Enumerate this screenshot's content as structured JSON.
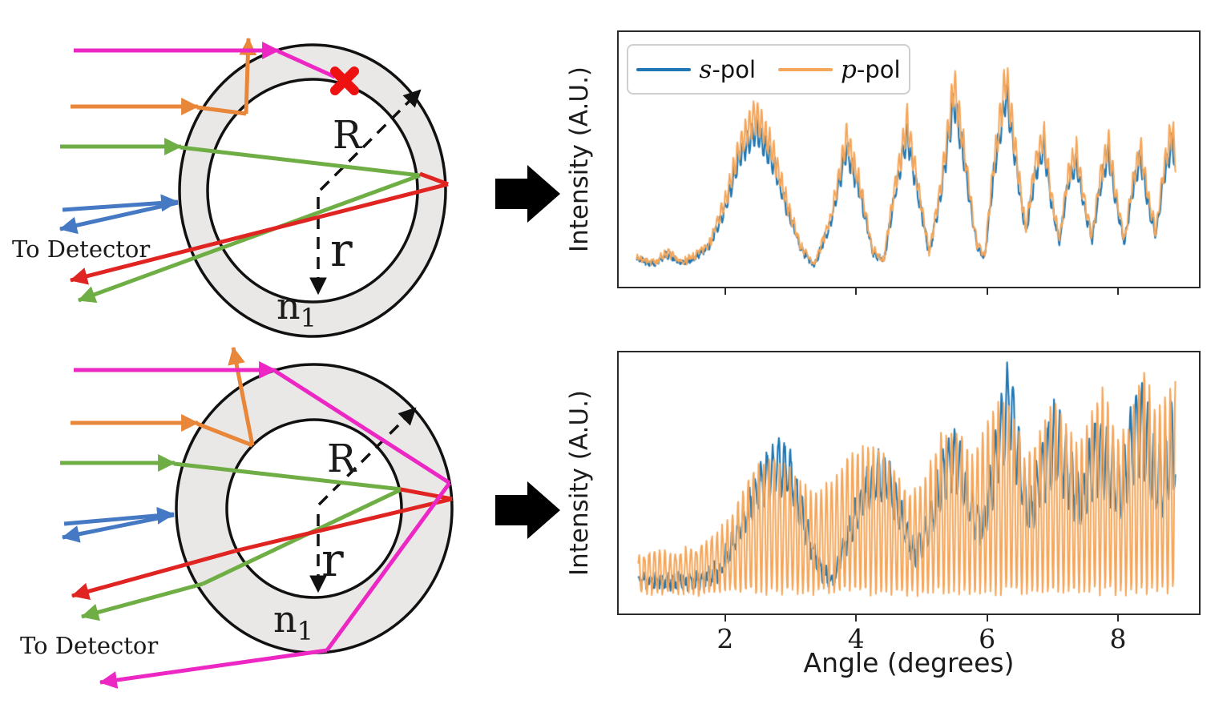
{
  "figure": {
    "background": "#ffffff",
    "flow_arrow_color": "#000000"
  },
  "diagram_colors": {
    "shell_fill": "#e9e8e7",
    "outline": "#111111",
    "magenta_ray": "#ec27c4",
    "orange_ray": "#e8863a",
    "green_ray": "#6fae44",
    "blue_ray": "#4579c4",
    "red_ray": "#e02421",
    "blocked_marker": "#ee1111",
    "dimension_color": "#111111"
  },
  "diagrams": {
    "top": {
      "to_detector": "To Detector",
      "outer_radius_label": "R",
      "inner_radius_label": "r",
      "refractive_index_base": "n",
      "refractive_index_sub": "1"
    },
    "bottom": {
      "to_detector": "To Detector",
      "outer_radius_label": "R",
      "inner_radius_label": "r",
      "refractive_index_base": "n",
      "refractive_index_sub": "1"
    }
  },
  "chart_data": [
    {
      "id": "upper-intensity-plot",
      "type": "line",
      "title": "",
      "xlabel": "",
      "ylabel": "Intensity (A.U.)",
      "xlim": [
        0.35,
        9.26
      ],
      "ylim": [
        -0.05,
        1.05
      ],
      "xticks": [
        2,
        4,
        6,
        8
      ],
      "show_xtick_labels": false,
      "grid": false,
      "legend": {
        "visible": true,
        "position": "upper-left",
        "entries": [
          {
            "symbol": "s",
            "suffix": "-pol",
            "color": "#1f77b4"
          },
          {
            "symbol": "p",
            "suffix": "-pol",
            "color": "#f4a65a"
          }
        ]
      },
      "x_start": 0.62,
      "x_end": 8.9,
      "dx": 0.008,
      "series": [
        {
          "name": "s-pol",
          "color": "#1f77b4",
          "mode": "ripple",
          "linewidth": 2.1,
          "seed": 42,
          "noise": 0.013,
          "ripple_amp": 0.09,
          "ripple_period": 0.07,
          "phase": 0.0,
          "envelope": [
            [
              0.62,
              0.07
            ],
            [
              0.9,
              0.05
            ],
            [
              1.1,
              0.09
            ],
            [
              1.3,
              0.05
            ],
            [
              1.5,
              0.07
            ],
            [
              1.75,
              0.13
            ],
            [
              2.0,
              0.3
            ],
            [
              2.2,
              0.5
            ],
            [
              2.45,
              0.63
            ],
            [
              2.7,
              0.5
            ],
            [
              2.95,
              0.27
            ],
            [
              3.15,
              0.11
            ],
            [
              3.35,
              0.04
            ],
            [
              3.6,
              0.22
            ],
            [
              3.85,
              0.54
            ],
            [
              4.05,
              0.36
            ],
            [
              4.25,
              0.1
            ],
            [
              4.42,
              0.06
            ],
            [
              4.6,
              0.36
            ],
            [
              4.78,
              0.6
            ],
            [
              4.95,
              0.34
            ],
            [
              5.12,
              0.09
            ],
            [
              5.3,
              0.36
            ],
            [
              5.5,
              0.75
            ],
            [
              5.66,
              0.48
            ],
            [
              5.85,
              0.12
            ],
            [
              5.97,
              0.08
            ],
            [
              6.12,
              0.46
            ],
            [
              6.3,
              0.78
            ],
            [
              6.45,
              0.48
            ],
            [
              6.6,
              0.18
            ],
            [
              6.75,
              0.44
            ],
            [
              6.88,
              0.55
            ],
            [
              7.0,
              0.3
            ],
            [
              7.12,
              0.14
            ],
            [
              7.25,
              0.4
            ],
            [
              7.38,
              0.48
            ],
            [
              7.5,
              0.29
            ],
            [
              7.62,
              0.15
            ],
            [
              7.74,
              0.38
            ],
            [
              7.87,
              0.52
            ],
            [
              8.0,
              0.29
            ],
            [
              8.12,
              0.14
            ],
            [
              8.24,
              0.36
            ],
            [
              8.36,
              0.5
            ],
            [
              8.5,
              0.28
            ],
            [
              8.6,
              0.17
            ],
            [
              8.72,
              0.42
            ],
            [
              8.85,
              0.58
            ],
            [
              8.9,
              0.45
            ]
          ]
        },
        {
          "name": "p-pol",
          "color": "#f4a65a",
          "mode": "ripple",
          "linewidth": 2.0,
          "seed": 7,
          "noise": 0.013,
          "ripple_amp": 0.11,
          "ripple_period": 0.062,
          "phase": 1.3,
          "envelope_scale": 1.1
        }
      ]
    },
    {
      "id": "lower-intensity-plot",
      "type": "line",
      "title": "",
      "xlabel": "Angle (degrees)",
      "ylabel": "Intensity (A.U.)",
      "xlim": [
        0.35,
        9.26
      ],
      "ylim": [
        -0.05,
        1.05
      ],
      "xticks": [
        2,
        4,
        6,
        8
      ],
      "show_xtick_labels": true,
      "grid": false,
      "legend": {
        "visible": false,
        "entries": []
      },
      "x_start": 0.65,
      "x_end": 8.9,
      "dx": 0.008,
      "series": [
        {
          "name": "s-pol",
          "color": "#1f77b4",
          "mode": "ripple",
          "linewidth": 2.1,
          "seed": 11,
          "noise": 0.03,
          "ripple_amp": 0.18,
          "ripple_amp_growth": 0.02,
          "ripple_growth_from": 4.0,
          "ripple_period": 0.09,
          "phase": 0.4,
          "envelope": [
            [
              0.65,
              0.09
            ],
            [
              0.9,
              0.08
            ],
            [
              1.2,
              0.09
            ],
            [
              1.5,
              0.08
            ],
            [
              1.9,
              0.13
            ],
            [
              2.2,
              0.3
            ],
            [
              2.5,
              0.48
            ],
            [
              2.78,
              0.58
            ],
            [
              3.0,
              0.53
            ],
            [
              3.2,
              0.33
            ],
            [
              3.45,
              0.13
            ],
            [
              3.65,
              0.1
            ],
            [
              3.9,
              0.3
            ],
            [
              4.2,
              0.5
            ],
            [
              4.45,
              0.54
            ],
            [
              4.7,
              0.34
            ],
            [
              4.9,
              0.2
            ],
            [
              5.1,
              0.3
            ],
            [
              5.35,
              0.55
            ],
            [
              5.55,
              0.6
            ],
            [
              5.75,
              0.4
            ],
            [
              5.95,
              0.3
            ],
            [
              6.15,
              0.6
            ],
            [
              6.35,
              0.85
            ],
            [
              6.5,
              0.58
            ],
            [
              6.65,
              0.35
            ],
            [
              6.85,
              0.55
            ],
            [
              7.05,
              0.68
            ],
            [
              7.25,
              0.55
            ],
            [
              7.45,
              0.4
            ],
            [
              7.65,
              0.6
            ],
            [
              7.85,
              0.58
            ],
            [
              8.05,
              0.45
            ],
            [
              8.25,
              0.68
            ],
            [
              8.4,
              0.74
            ],
            [
              8.55,
              0.55
            ],
            [
              8.7,
              0.5
            ],
            [
              8.85,
              0.68
            ],
            [
              8.9,
              0.6
            ]
          ]
        },
        {
          "name": "p-pol",
          "color": "#f4a65a",
          "mode": "carrier",
          "linewidth": 2.0,
          "seed": 23,
          "noise": 0.02,
          "vmin": 0.04,
          "ripple_period": 0.08,
          "phase": 0.0,
          "envelope": [
            [
              0.65,
              0.2
            ],
            [
              1.0,
              0.2
            ],
            [
              1.5,
              0.22
            ],
            [
              2.0,
              0.32
            ],
            [
              2.4,
              0.55
            ],
            [
              2.7,
              0.62
            ],
            [
              3.0,
              0.55
            ],
            [
              3.3,
              0.45
            ],
            [
              3.6,
              0.5
            ],
            [
              3.9,
              0.62
            ],
            [
              4.2,
              0.66
            ],
            [
              4.5,
              0.6
            ],
            [
              4.8,
              0.45
            ],
            [
              5.0,
              0.5
            ],
            [
              5.3,
              0.7
            ],
            [
              5.6,
              0.72
            ],
            [
              5.8,
              0.6
            ],
            [
              6.0,
              0.75
            ],
            [
              6.2,
              0.85
            ],
            [
              6.4,
              0.8
            ],
            [
              6.6,
              0.6
            ],
            [
              6.8,
              0.7
            ],
            [
              7.0,
              0.85
            ],
            [
              7.2,
              0.75
            ],
            [
              7.4,
              0.65
            ],
            [
              7.6,
              0.8
            ],
            [
              7.8,
              0.9
            ],
            [
              8.0,
              0.7
            ],
            [
              8.2,
              0.75
            ],
            [
              8.4,
              1.0
            ],
            [
              8.6,
              0.8
            ],
            [
              8.75,
              0.85
            ],
            [
              8.9,
              0.95
            ]
          ]
        }
      ]
    }
  ]
}
